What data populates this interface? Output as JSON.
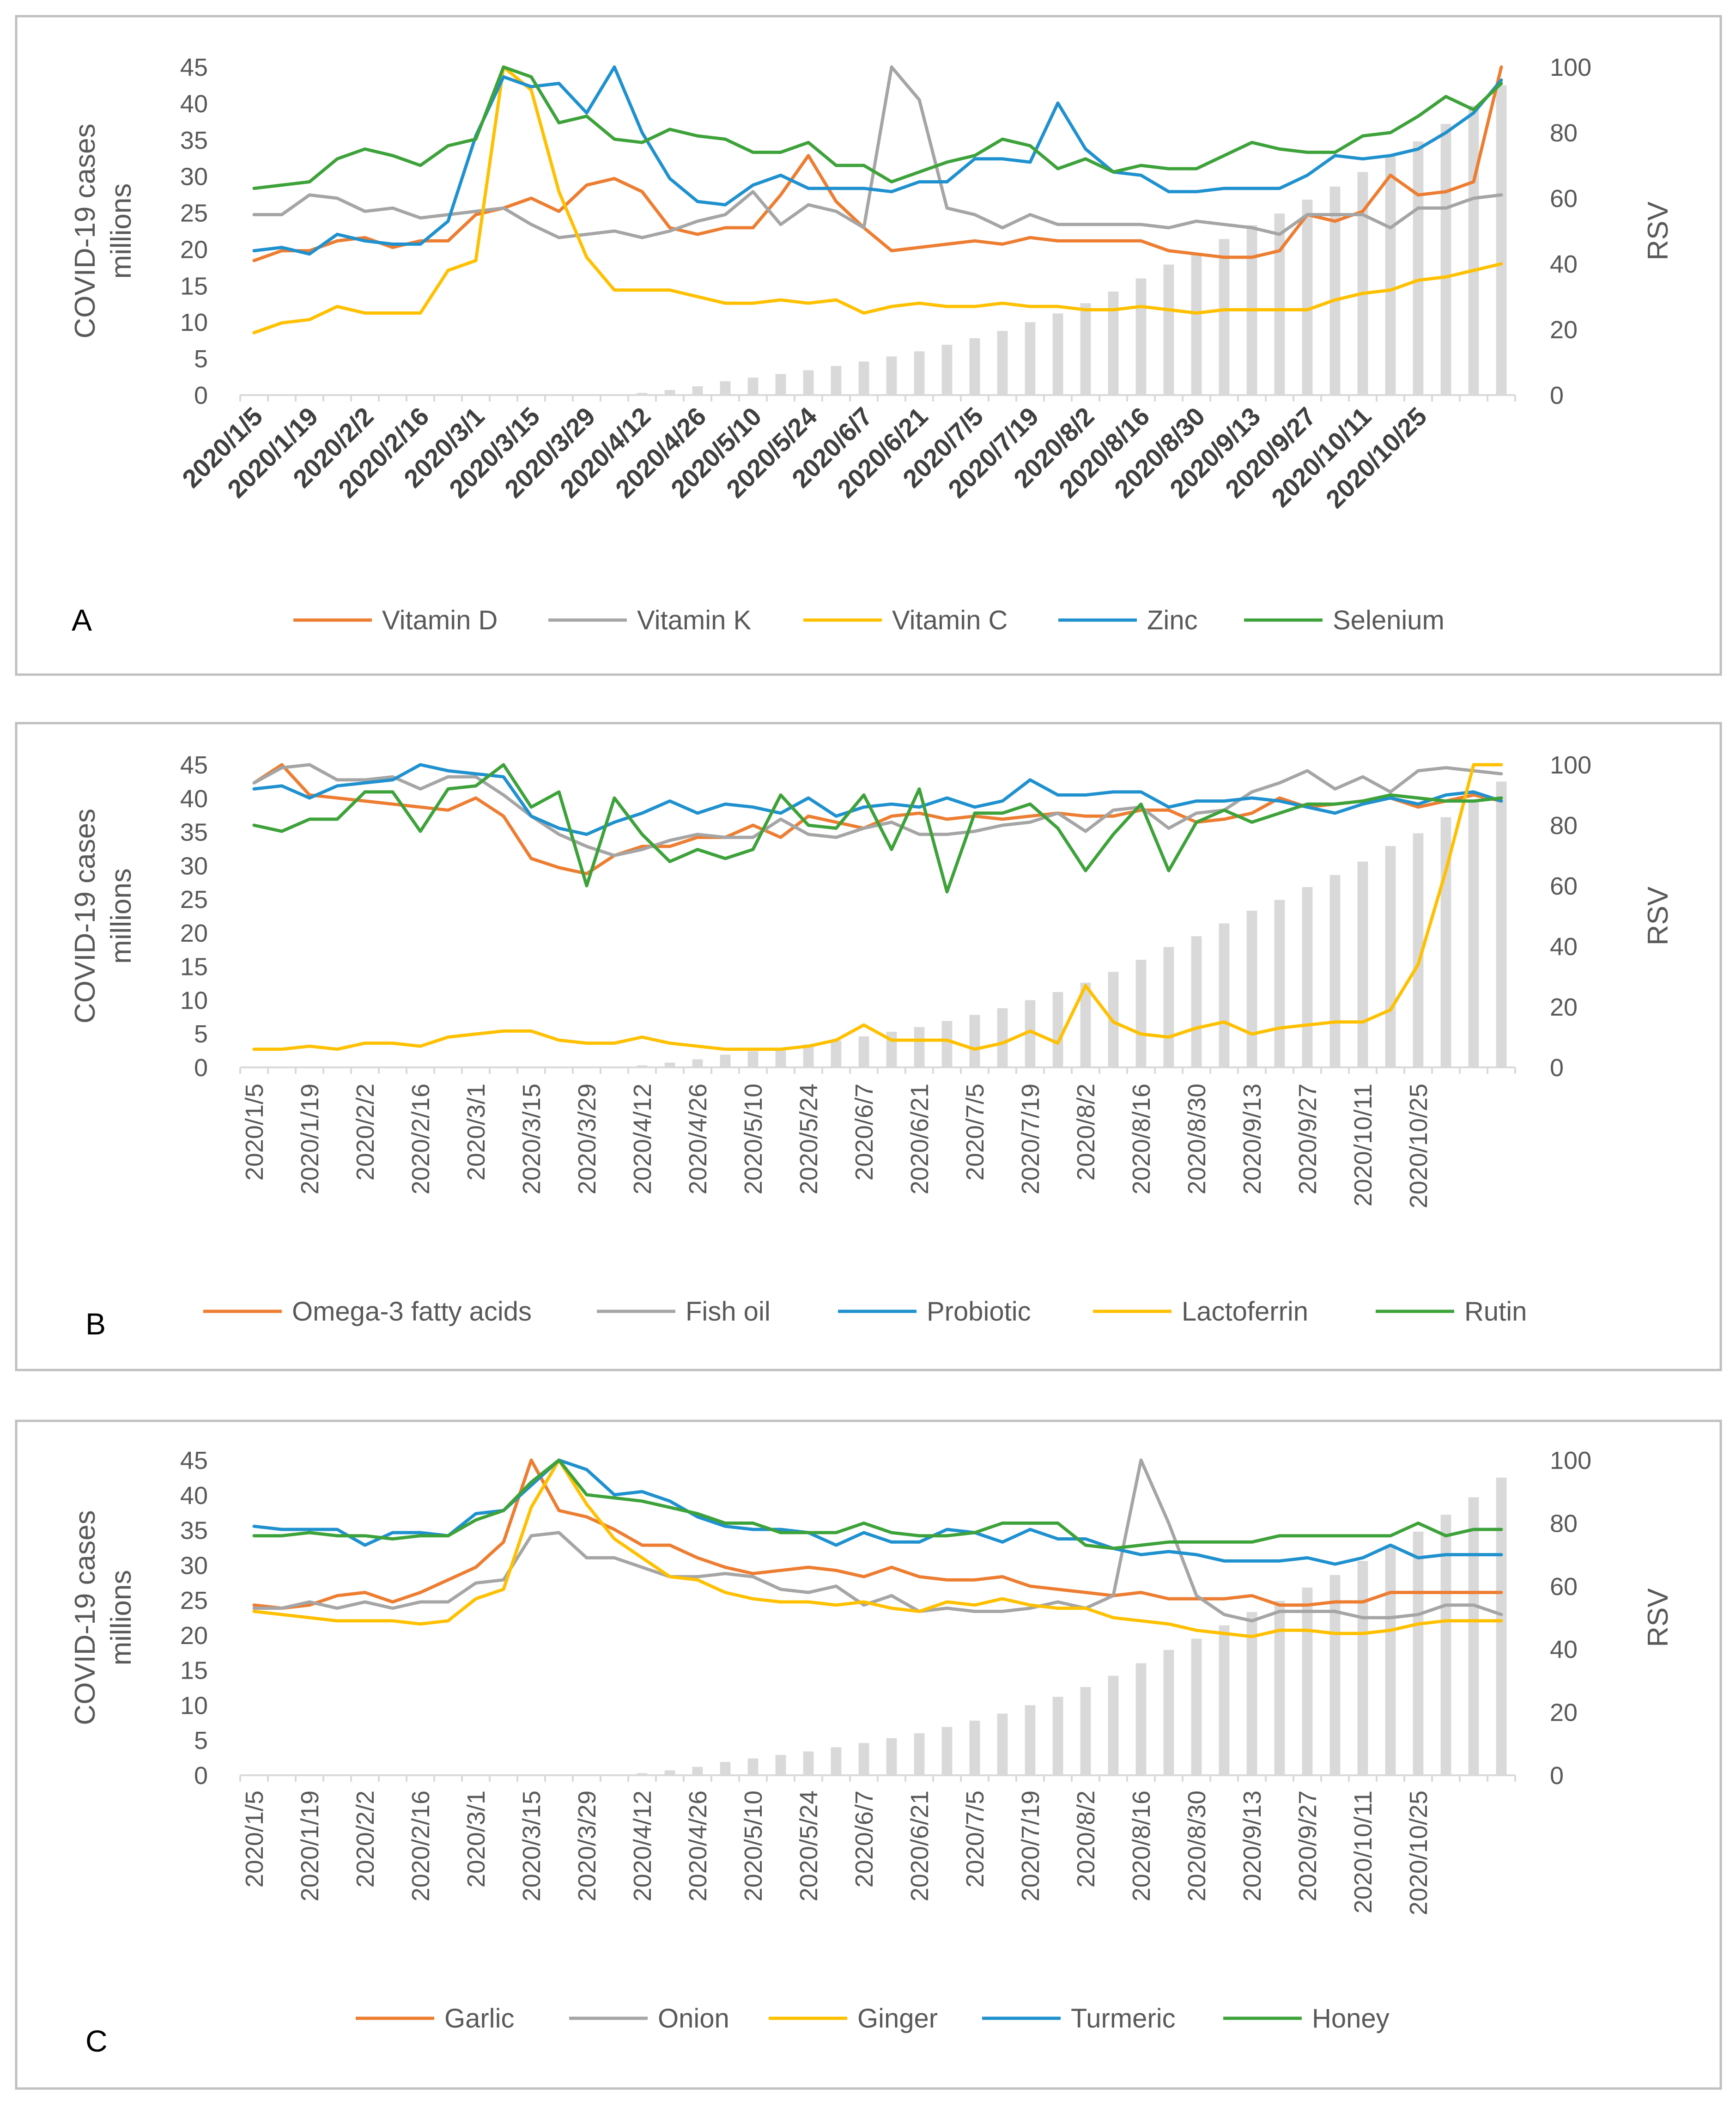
{
  "chart_data": [
    {
      "panel": "A",
      "type": "line+bar",
      "ylabel_left": "COVID-19 cases millions",
      "ylabel_right": "RSV",
      "ylim_left": [
        0,
        45
      ],
      "ylim_right": [
        0,
        100
      ],
      "yticks_left": [
        "0",
        "5",
        "10",
        "15",
        "20",
        "25",
        "30",
        "35",
        "40",
        "45"
      ],
      "yticks_right": [
        "0",
        "20",
        "40",
        "60",
        "80",
        "100"
      ],
      "x_tick_labels": [
        "2020/1/5",
        "2020/1/19",
        "2020/2/2",
        "2020/2/16",
        "2020/3/1",
        "2020/3/15",
        "2020/3/29",
        "2020/4/12",
        "2020/4/26",
        "2020/5/10",
        "2020/5/24",
        "2020/6/7",
        "2020/6/21",
        "2020/7/5",
        "2020/7/19",
        "2020/8/2",
        "2020/8/16",
        "2020/8/30",
        "2020/9/13",
        "2020/9/27",
        "2020/10/11",
        "2020/10/25"
      ],
      "cases": [
        0,
        0,
        0,
        0,
        0,
        0,
        0,
        0,
        0,
        0,
        0,
        0,
        0.02,
        0.05,
        0.3,
        0.7,
        1.2,
        1.9,
        2.4,
        2.9,
        3.4,
        4.0,
        4.6,
        5.3,
        6.0,
        6.9,
        7.8,
        8.8,
        10.0,
        11.2,
        12.6,
        14.2,
        16.0,
        17.9,
        19.5,
        21.4,
        23.3,
        24.9,
        26.8,
        28.6,
        30.6,
        32.9,
        34.8,
        37.2,
        39.7,
        42.5
      ],
      "series": [
        {
          "name": "Vitamin D",
          "color": "#ED7D31",
          "values": [
            41,
            44,
            44,
            47,
            48,
            45,
            47,
            47,
            55,
            57,
            60,
            56,
            64,
            66,
            62,
            51,
            49,
            51,
            51,
            61,
            73,
            59,
            51,
            44,
            45,
            46,
            47,
            46,
            48,
            47,
            47,
            47,
            47,
            44,
            43,
            42,
            42,
            44,
            55,
            53,
            56,
            67,
            61,
            62,
            65,
            100
          ]
        },
        {
          "name": "Vitamin K",
          "color": "#A5A5A5",
          "values": [
            55,
            55,
            61,
            60,
            56,
            57,
            54,
            55,
            56,
            57,
            52,
            48,
            49,
            50,
            48,
            50,
            53,
            55,
            62,
            52,
            58,
            56,
            51,
            100,
            90,
            57,
            55,
            51,
            55,
            52,
            52,
            52,
            52,
            51,
            53,
            52,
            51,
            49,
            55,
            55,
            55,
            51,
            57,
            57,
            60,
            61
          ]
        },
        {
          "name": "Vitamin C",
          "color": "#FFC000",
          "values": [
            19,
            22,
            23,
            27,
            25,
            25,
            25,
            38,
            41,
            100,
            93,
            62,
            42,
            32,
            32,
            32,
            30,
            28,
            28,
            29,
            28,
            29,
            25,
            27,
            28,
            27,
            27,
            28,
            27,
            27,
            26,
            26,
            27,
            26,
            25,
            26,
            26,
            26,
            26,
            29,
            31,
            32,
            35,
            36,
            38,
            40
          ]
        },
        {
          "name": "Zinc",
          "color": "#1F91CF",
          "values": [
            44,
            45,
            43,
            49,
            47,
            46,
            46,
            53,
            79,
            97,
            94,
            95,
            86,
            100,
            80,
            66,
            59,
            58,
            64,
            67,
            63,
            63,
            63,
            62,
            65,
            65,
            72,
            72,
            71,
            89,
            75,
            68,
            67,
            62,
            62,
            63,
            63,
            63,
            67,
            73,
            72,
            73,
            75,
            80,
            86,
            96
          ]
        },
        {
          "name": "Selenium",
          "color": "#3DA23A",
          "values": [
            63,
            64,
            65,
            72,
            75,
            73,
            70,
            76,
            78,
            100,
            97,
            83,
            85,
            78,
            77,
            81,
            79,
            78,
            74,
            74,
            77,
            70,
            70,
            65,
            68,
            71,
            73,
            78,
            76,
            69,
            72,
            68,
            70,
            69,
            69,
            73,
            77,
            75,
            74,
            74,
            79,
            80,
            85,
            91,
            87,
            95
          ]
        }
      ]
    },
    {
      "panel": "B",
      "type": "line+bar",
      "ylabel_left": "COVID-19 cases millions",
      "ylabel_right": "RSV",
      "ylim_left": [
        0,
        45
      ],
      "ylim_right": [
        0,
        100
      ],
      "yticks_left": [
        "0",
        "5",
        "10",
        "15",
        "20",
        "25",
        "30",
        "35",
        "40",
        "45"
      ],
      "yticks_right": [
        "0",
        "20",
        "40",
        "60",
        "80",
        "100"
      ],
      "x_tick_labels": [
        "2020/1/5",
        "2020/1/19",
        "2020/2/2",
        "2020/2/16",
        "2020/3/1",
        "2020/3/15",
        "2020/3/29",
        "2020/4/12",
        "2020/4/26",
        "2020/5/10",
        "2020/5/24",
        "2020/6/7",
        "2020/6/21",
        "2020/7/5",
        "2020/7/19",
        "2020/8/2",
        "2020/8/16",
        "2020/8/30",
        "2020/9/13",
        "2020/9/27",
        "2020/10/11",
        "2020/10/25"
      ],
      "cases": [
        0,
        0,
        0,
        0,
        0,
        0,
        0,
        0,
        0,
        0,
        0,
        0,
        0.02,
        0.05,
        0.3,
        0.7,
        1.2,
        1.9,
        2.4,
        2.9,
        3.4,
        4.0,
        4.6,
        5.3,
        6.0,
        6.9,
        7.8,
        8.8,
        10.0,
        11.2,
        12.6,
        14.2,
        16.0,
        17.9,
        19.5,
        21.4,
        23.3,
        24.9,
        26.8,
        28.6,
        30.6,
        32.9,
        34.8,
        37.2,
        39.7,
        42.5
      ],
      "series": [
        {
          "name": "Omega-3 fatty acids",
          "color": "#ED7D31",
          "values": [
            94,
            100,
            90,
            89,
            88,
            87,
            86,
            85,
            89,
            83,
            69,
            66,
            64,
            70,
            73,
            73,
            76,
            76,
            80,
            76,
            83,
            81,
            79,
            83,
            84,
            82,
            83,
            82,
            83,
            84,
            83,
            83,
            85,
            85,
            81,
            82,
            84,
            89,
            86,
            87,
            88,
            89,
            86,
            88,
            90,
            88
          ]
        },
        {
          "name": "Fish oil",
          "color": "#A5A5A5",
          "values": [
            94,
            99,
            100,
            95,
            95,
            96,
            92,
            96,
            96,
            90,
            83,
            77,
            73,
            70,
            72,
            75,
            77,
            76,
            76,
            82,
            77,
            76,
            79,
            81,
            77,
            77,
            78,
            80,
            81,
            84,
            78,
            85,
            86,
            79,
            84,
            85,
            91,
            94,
            98,
            92,
            96,
            91,
            98,
            99,
            98,
            97
          ]
        },
        {
          "name": "Probiotic",
          "color": "#1F91CF",
          "values": [
            92,
            93,
            89,
            93,
            94,
            95,
            100,
            98,
            97,
            96,
            83,
            79,
            77,
            81,
            84,
            88,
            84,
            87,
            86,
            84,
            89,
            83,
            86,
            87,
            86,
            89,
            86,
            88,
            95,
            90,
            90,
            91,
            91,
            86,
            88,
            88,
            89,
            88,
            86,
            84,
            87,
            89,
            87,
            90,
            91,
            88
          ]
        },
        {
          "name": "Lactoferrin",
          "color": "#FFC000",
          "values": [
            6,
            6,
            7,
            6,
            8,
            8,
            7,
            10,
            11,
            12,
            12,
            9,
            8,
            8,
            10,
            8,
            7,
            6,
            6,
            6,
            7,
            9,
            14,
            9,
            9,
            9,
            6,
            8,
            12,
            8,
            27,
            15,
            11,
            10,
            13,
            15,
            11,
            13,
            14,
            15,
            15,
            19,
            34,
            65,
            100,
            100
          ]
        },
        {
          "name": "Rutin",
          "color": "#3DA23A",
          "values": [
            80,
            78,
            82,
            82,
            91,
            91,
            78,
            92,
            93,
            100,
            86,
            91,
            60,
            89,
            77,
            68,
            72,
            69,
            72,
            90,
            80,
            79,
            90,
            72,
            92,
            58,
            84,
            84,
            87,
            79,
            65,
            77,
            87,
            65,
            81,
            85,
            81,
            84,
            87,
            87,
            88,
            90,
            89,
            88,
            88,
            89
          ]
        }
      ]
    },
    {
      "panel": "C",
      "type": "line+bar",
      "ylabel_left": "COVID-19 cases millions",
      "ylabel_right": "RSV",
      "ylim_left": [
        0,
        45
      ],
      "ylim_right": [
        0,
        100
      ],
      "yticks_left": [
        "0",
        "5",
        "10",
        "15",
        "20",
        "25",
        "30",
        "35",
        "40",
        "45"
      ],
      "yticks_right": [
        "0",
        "20",
        "40",
        "60",
        "80",
        "100"
      ],
      "x_tick_labels": [
        "2020/1/5",
        "2020/1/19",
        "2020/2/2",
        "2020/2/16",
        "2020/3/1",
        "2020/3/15",
        "2020/3/29",
        "2020/4/12",
        "2020/4/26",
        "2020/5/10",
        "2020/5/24",
        "2020/6/7",
        "2020/6/21",
        "2020/7/5",
        "2020/7/19",
        "2020/8/2",
        "2020/8/16",
        "2020/8/30",
        "2020/9/13",
        "2020/9/27",
        "2020/10/11",
        "2020/10/25"
      ],
      "cases": [
        0,
        0,
        0,
        0,
        0,
        0,
        0,
        0,
        0,
        0,
        0,
        0,
        0.02,
        0.05,
        0.3,
        0.7,
        1.2,
        1.9,
        2.4,
        2.9,
        3.4,
        4.0,
        4.6,
        5.3,
        6.0,
        6.9,
        7.8,
        8.8,
        10.0,
        11.2,
        12.6,
        14.2,
        16.0,
        17.9,
        19.5,
        21.4,
        23.3,
        24.9,
        26.8,
        28.6,
        30.6,
        32.9,
        34.8,
        37.2,
        39.7,
        42.5
      ],
      "series": [
        {
          "name": "Garlic",
          "color": "#ED7D31",
          "values": [
            54,
            53,
            54,
            57,
            58,
            55,
            58,
            62,
            66,
            74,
            100,
            84,
            82,
            78,
            73,
            73,
            69,
            66,
            64,
            65,
            66,
            65,
            63,
            66,
            63,
            62,
            62,
            63,
            60,
            59,
            58,
            57,
            58,
            56,
            56,
            56,
            57,
            54,
            54,
            55,
            55,
            58,
            58,
            58,
            58,
            58
          ]
        },
        {
          "name": "Onion",
          "color": "#A5A5A5",
          "values": [
            53,
            53,
            55,
            53,
            55,
            53,
            55,
            55,
            61,
            62,
            76,
            77,
            69,
            69,
            66,
            63,
            63,
            64,
            63,
            59,
            58,
            60,
            54,
            57,
            52,
            53,
            52,
            52,
            53,
            55,
            53,
            57,
            100,
            80,
            57,
            51,
            49,
            52,
            52,
            52,
            50,
            50,
            51,
            54,
            54,
            51
          ]
        },
        {
          "name": "Ginger",
          "color": "#FFC000",
          "values": [
            52,
            51,
            50,
            49,
            49,
            49,
            48,
            49,
            56,
            59,
            85,
            100,
            86,
            75,
            69,
            63,
            62,
            58,
            56,
            55,
            55,
            54,
            55,
            53,
            52,
            55,
            54,
            56,
            54,
            53,
            53,
            50,
            49,
            48,
            46,
            45,
            44,
            46,
            46,
            45,
            45,
            46,
            48,
            49,
            49,
            49
          ]
        },
        {
          "name": "Turmeric",
          "color": "#1F91CF",
          "values": [
            79,
            78,
            78,
            78,
            73,
            77,
            77,
            76,
            83,
            84,
            92,
            100,
            97,
            89,
            90,
            87,
            82,
            79,
            78,
            78,
            77,
            73,
            77,
            74,
            74,
            78,
            77,
            74,
            78,
            75,
            75,
            72,
            70,
            71,
            70,
            68,
            68,
            68,
            69,
            67,
            69,
            73,
            69,
            70,
            70,
            70
          ]
        },
        {
          "name": "Honey",
          "color": "#3DA23A",
          "values": [
            76,
            76,
            77,
            76,
            76,
            75,
            76,
            76,
            81,
            84,
            93,
            100,
            89,
            88,
            87,
            85,
            83,
            80,
            80,
            77,
            77,
            77,
            80,
            77,
            76,
            76,
            77,
            80,
            80,
            80,
            73,
            72,
            73,
            74,
            74,
            74,
            74,
            76,
            76,
            76,
            76,
            76,
            80,
            76,
            78,
            78
          ]
        }
      ]
    }
  ],
  "panel_labels": [
    "A",
    "B",
    "C"
  ]
}
